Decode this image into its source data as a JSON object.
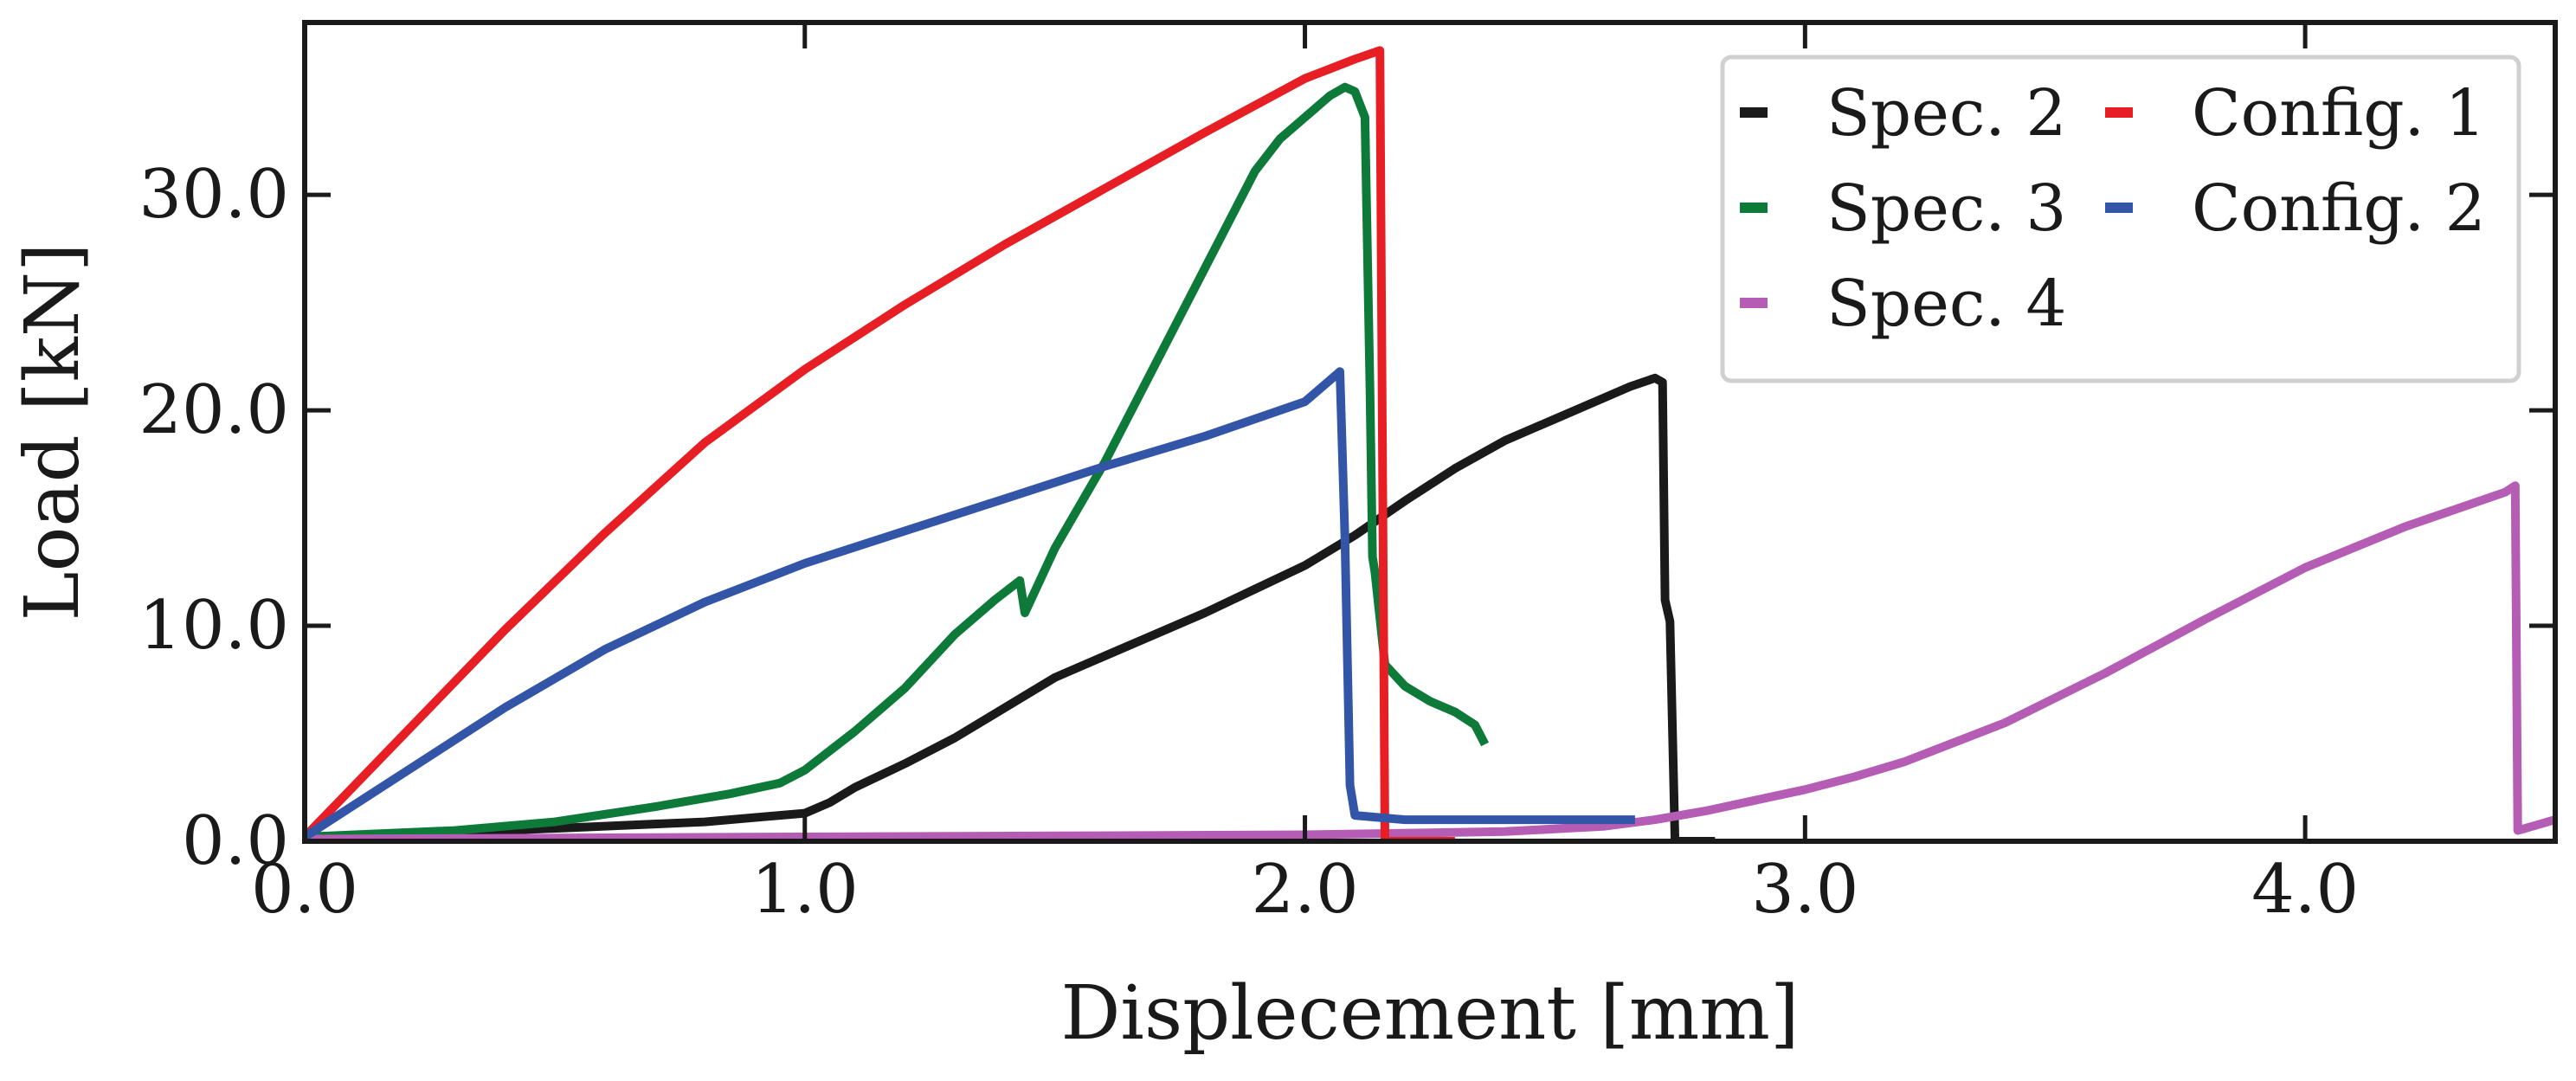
{
  "chart_data": {
    "type": "line",
    "title": "",
    "xlabel": "Displecement [mm]",
    "ylabel": "Load [kN]",
    "xlim": [
      0.0,
      4.5
    ],
    "ylim": [
      0.0,
      38.0
    ],
    "xticks": [
      0.0,
      1.0,
      2.0,
      3.0,
      4.0
    ],
    "xtick_labels": [
      "0.0",
      "1.0",
      "2.0",
      "3.0",
      "4.0"
    ],
    "yticks": [
      0.0,
      10.0,
      20.0,
      30.0
    ],
    "ytick_labels": [
      "0.0",
      "10.0",
      "20.0",
      "30.0"
    ],
    "grid": false,
    "legend_position": "top-right",
    "legend_columns": 2,
    "series": [
      {
        "name": "Spec. 2",
        "color": "#1a1a1a",
        "x": [
          0.0,
          0.3,
          0.6,
          0.8,
          1.0,
          1.05,
          1.1,
          1.2,
          1.3,
          1.4,
          1.5,
          1.6,
          1.7,
          1.8,
          1.9,
          2.0,
          2.1,
          2.2,
          2.3,
          2.4,
          2.5,
          2.6,
          2.65,
          2.7,
          2.715,
          2.72,
          2.73,
          2.74,
          2.75,
          2.8,
          2.82
        ],
        "y": [
          0.2,
          0.4,
          0.7,
          0.9,
          1.3,
          1.8,
          2.5,
          3.6,
          4.8,
          6.2,
          7.6,
          8.6,
          9.6,
          10.6,
          11.7,
          12.8,
          14.2,
          15.8,
          17.3,
          18.6,
          19.6,
          20.6,
          21.1,
          21.5,
          21.3,
          11.2,
          10.2,
          0.0,
          0.0,
          0.0,
          0.0
        ]
      },
      {
        "name": "Spec. 3",
        "color": "#0e7a3a",
        "x": [
          0.0,
          0.3,
          0.5,
          0.7,
          0.85,
          0.95,
          1.0,
          1.1,
          1.2,
          1.3,
          1.38,
          1.43,
          1.44,
          1.46,
          1.5,
          1.6,
          1.7,
          1.8,
          1.9,
          1.95,
          2.0,
          2.05,
          2.08,
          2.1,
          2.12,
          2.13,
          2.135,
          2.14,
          2.16,
          2.2,
          2.25,
          2.3,
          2.34,
          2.36
        ],
        "y": [
          0.2,
          0.5,
          0.9,
          1.6,
          2.2,
          2.7,
          3.3,
          5.1,
          7.1,
          9.6,
          11.2,
          12.1,
          10.6,
          11.6,
          13.6,
          17.6,
          22.1,
          26.6,
          31.1,
          32.6,
          33.6,
          34.6,
          35.0,
          34.8,
          33.6,
          21.0,
          13.2,
          12.5,
          8.2,
          7.2,
          6.5,
          6.0,
          5.4,
          4.5
        ]
      },
      {
        "name": "Spec. 4",
        "color": "#b55cb5",
        "x": [
          0.0,
          0.5,
          1.0,
          1.5,
          2.0,
          2.4,
          2.6,
          2.7,
          2.8,
          2.9,
          3.0,
          3.1,
          3.2,
          3.4,
          3.6,
          3.8,
          4.0,
          4.2,
          4.3,
          4.4,
          4.42,
          4.425,
          4.5
        ],
        "y": [
          0.1,
          0.15,
          0.2,
          0.25,
          0.3,
          0.45,
          0.7,
          1.0,
          1.4,
          1.9,
          2.4,
          3.0,
          3.7,
          5.5,
          7.8,
          10.3,
          12.7,
          14.6,
          15.4,
          16.2,
          16.5,
          0.5,
          1.0
        ]
      },
      {
        "name": "Config. 1",
        "color": "#e81e25",
        "x": [
          0.0,
          0.2,
          0.4,
          0.6,
          0.8,
          1.0,
          1.2,
          1.4,
          1.6,
          1.8,
          2.0,
          2.1,
          2.15,
          2.16,
          2.17,
          2.2,
          2.25,
          2.3
        ],
        "y": [
          0.2,
          5.0,
          9.8,
          14.3,
          18.5,
          21.9,
          24.9,
          27.7,
          30.3,
          32.9,
          35.4,
          36.3,
          36.7,
          0.0,
          0.0,
          0.0,
          0.0,
          0.0
        ]
      },
      {
        "name": "Config. 2",
        "color": "#3355a8",
        "x": [
          0.0,
          0.2,
          0.4,
          0.6,
          0.8,
          1.0,
          1.2,
          1.4,
          1.6,
          1.8,
          2.0,
          2.07,
          2.08,
          2.09,
          2.1,
          2.2,
          2.4,
          2.6,
          2.66
        ],
        "y": [
          0.2,
          3.2,
          6.2,
          8.9,
          11.1,
          12.9,
          14.4,
          15.9,
          17.4,
          18.8,
          20.4,
          21.8,
          14.0,
          2.6,
          1.2,
          1.0,
          1.0,
          1.0,
          1.0
        ]
      }
    ]
  }
}
